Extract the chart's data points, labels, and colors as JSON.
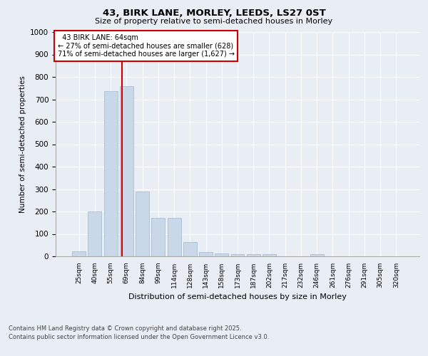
{
  "title1": "43, BIRK LANE, MORLEY, LEEDS, LS27 0ST",
  "title2": "Size of property relative to semi-detached houses in Morley",
  "xlabel": "Distribution of semi-detached houses by size in Morley",
  "ylabel": "Number of semi-detached properties",
  "categories": [
    "25sqm",
    "40sqm",
    "55sqm",
    "69sqm",
    "84sqm",
    "99sqm",
    "114sqm",
    "128sqm",
    "143sqm",
    "158sqm",
    "173sqm",
    "187sqm",
    "202sqm",
    "217sqm",
    "232sqm",
    "246sqm",
    "261sqm",
    "276sqm",
    "291sqm",
    "305sqm",
    "320sqm"
  ],
  "values": [
    22,
    200,
    738,
    758,
    290,
    172,
    170,
    65,
    18,
    14,
    10,
    8,
    10,
    0,
    0,
    8,
    0,
    0,
    0,
    0,
    0
  ],
  "bar_color": "#c8d8e8",
  "bar_edge_color": "#a0b8cc",
  "property_line_x": 2.5,
  "property_size": "64sqm",
  "property_label": "43 BIRK LANE: 64sqm",
  "pct_smaller": 27,
  "pct_larger": 71,
  "count_smaller": 628,
  "count_larger": 1627,
  "line_color": "#cc0000",
  "annotation_box_color": "#cc0000",
  "ylim": [
    0,
    1000
  ],
  "yticks": [
    0,
    100,
    200,
    300,
    400,
    500,
    600,
    700,
    800,
    900,
    1000
  ],
  "background_color": "#e8eef4",
  "grid_color": "#ffffff",
  "footer1": "Contains HM Land Registry data © Crown copyright and database right 2025.",
  "footer2": "Contains public sector information licensed under the Open Government Licence v3.0."
}
